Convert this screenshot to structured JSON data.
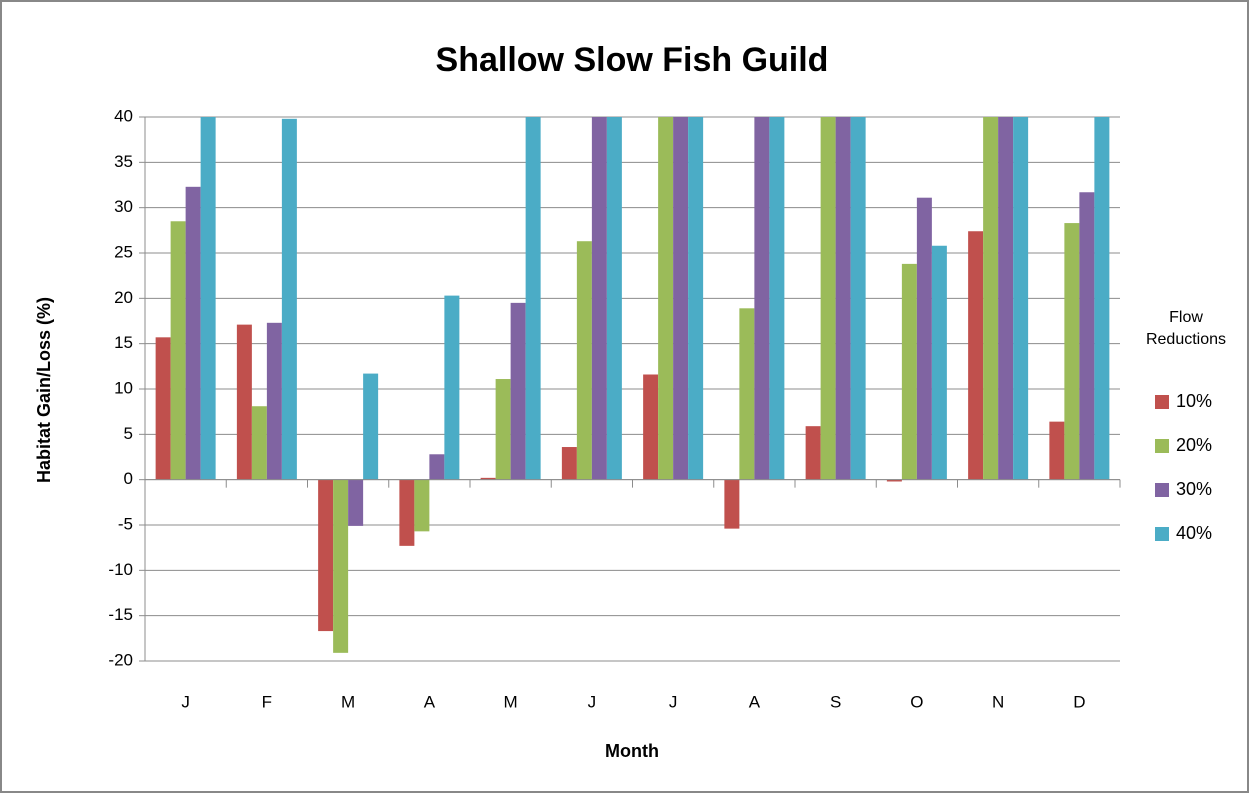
{
  "chart_data": {
    "type": "bar",
    "title": "Shallow Slow Fish Guild",
    "x_label": "Month",
    "y_label": "Habitat Gain/Loss (%)",
    "legend_title": [
      "Flow",
      "Reductions"
    ],
    "legend_position": "right",
    "grid": true,
    "categories": [
      "J",
      "F",
      "M",
      "A",
      "M",
      "J",
      "J",
      "A",
      "S",
      "O",
      "N",
      "D"
    ],
    "ylim": [
      -20,
      40
    ],
    "yticks": [
      -20,
      -15,
      -10,
      -5,
      0,
      5,
      10,
      15,
      20,
      25,
      30,
      35,
      40
    ],
    "series": [
      {
        "name": "10%",
        "color": "#c0504d",
        "values": [
          15.7,
          17.1,
          -16.7,
          -7.3,
          0.2,
          3.6,
          11.6,
          -5.4,
          5.9,
          -0.2,
          27.4,
          6.4
        ]
      },
      {
        "name": "20%",
        "color": "#9bbb59",
        "values": [
          28.5,
          8.1,
          -19.1,
          -5.7,
          11.1,
          26.3,
          40,
          18.9,
          40,
          23.8,
          40,
          28.3
        ]
      },
      {
        "name": "30%",
        "color": "#8064a2",
        "values": [
          32.3,
          17.3,
          -5.1,
          2.8,
          19.5,
          40,
          40,
          40,
          40,
          31.1,
          40,
          31.7
        ]
      },
      {
        "name": "40%",
        "color": "#4bacc6",
        "values": [
          40,
          39.8,
          11.7,
          20.3,
          40,
          40,
          40,
          40,
          40,
          25.8,
          40,
          40
        ]
      }
    ]
  }
}
